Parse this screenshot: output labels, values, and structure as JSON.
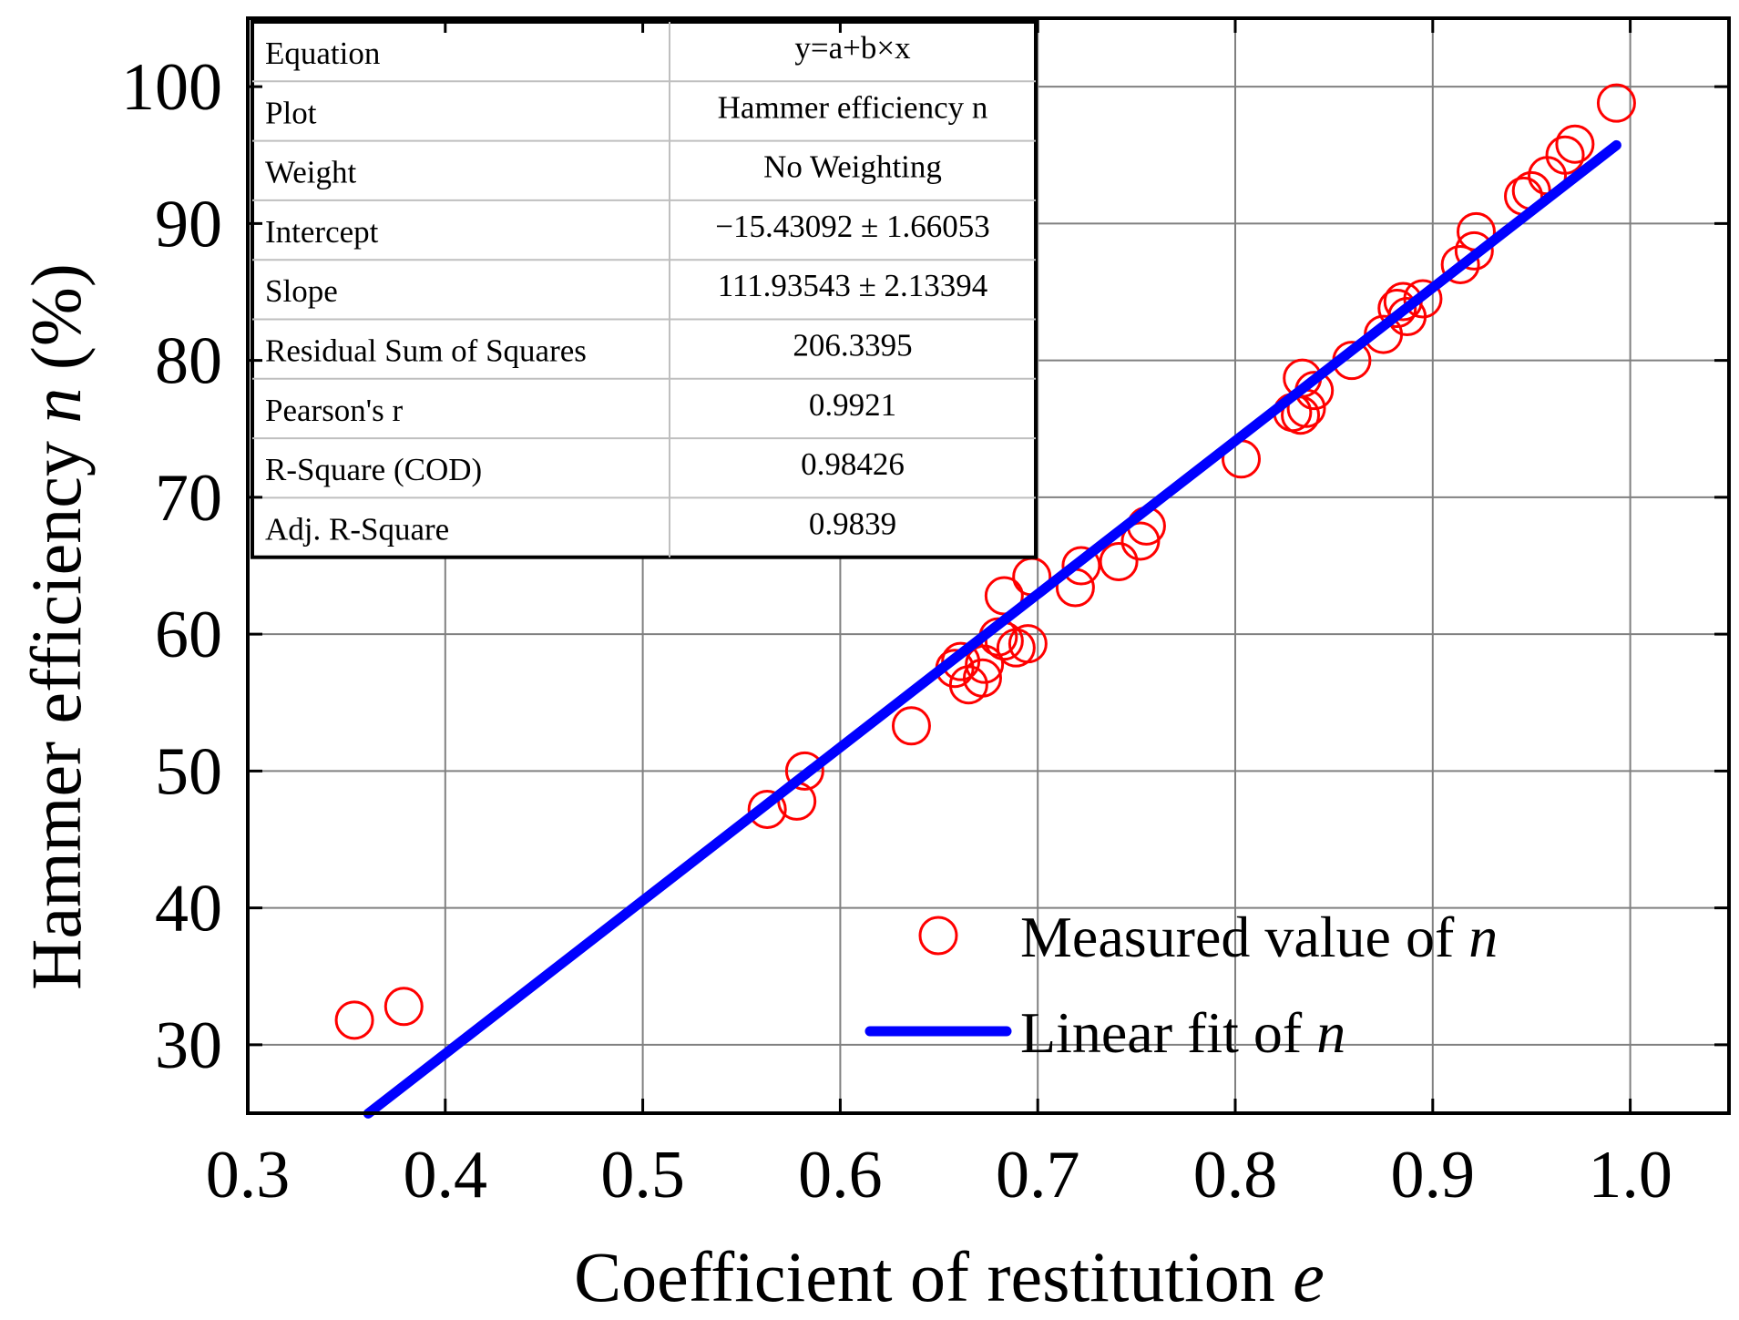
{
  "chart_data": {
    "type": "scatter",
    "xlabel": "Coefficient of restitution",
    "xlabel_var": "e",
    "ylabel": "Hammer efficiency",
    "ylabel_var": "n",
    "ylabel_unit": "(%)",
    "xlim": [
      0.3,
      1.05
    ],
    "ylim": [
      25,
      105
    ],
    "x_ticks": [
      0.3,
      0.4,
      0.5,
      0.6,
      0.7,
      0.8,
      0.9,
      1.0
    ],
    "x_tick_labels": [
      "0.3",
      "0.4",
      "0.5",
      "0.6",
      "0.7",
      "0.8",
      "0.9",
      "1.0"
    ],
    "y_ticks": [
      30,
      40,
      50,
      60,
      70,
      80,
      90,
      100
    ],
    "y_tick_labels": [
      "30",
      "40",
      "50",
      "60",
      "70",
      "80",
      "90",
      "100"
    ],
    "grid": true,
    "legend_position": "bottom-right",
    "series": [
      {
        "name": "Measured value of",
        "name_var": "n",
        "kind": "scatter",
        "marker": "open-circle",
        "color": "#ff0000",
        "points": [
          [
            0.354,
            31.8
          ],
          [
            0.379,
            32.8
          ],
          [
            0.563,
            47.2
          ],
          [
            0.578,
            47.8
          ],
          [
            0.582,
            50.0
          ],
          [
            0.636,
            53.3
          ],
          [
            0.658,
            57.5
          ],
          [
            0.661,
            58.0
          ],
          [
            0.665,
            56.3
          ],
          [
            0.672,
            56.8
          ],
          [
            0.673,
            57.8
          ],
          [
            0.68,
            59.8
          ],
          [
            0.683,
            59.5
          ],
          [
            0.683,
            62.8
          ],
          [
            0.689,
            59.0
          ],
          [
            0.695,
            59.3
          ],
          [
            0.697,
            64.2
          ],
          [
            0.719,
            63.4
          ],
          [
            0.722,
            65.0
          ],
          [
            0.741,
            65.3
          ],
          [
            0.752,
            66.8
          ],
          [
            0.755,
            67.9
          ],
          [
            0.803,
            72.8
          ],
          [
            0.829,
            76.2
          ],
          [
            0.833,
            76.0
          ],
          [
            0.834,
            78.7
          ],
          [
            0.836,
            76.5
          ],
          [
            0.84,
            77.8
          ],
          [
            0.859,
            80.0
          ],
          [
            0.875,
            81.9
          ],
          [
            0.882,
            83.8
          ],
          [
            0.885,
            84.3
          ],
          [
            0.887,
            83.2
          ],
          [
            0.895,
            84.5
          ],
          [
            0.914,
            87.0
          ],
          [
            0.921,
            88.0
          ],
          [
            0.922,
            89.4
          ],
          [
            0.946,
            92.0
          ],
          [
            0.95,
            92.4
          ],
          [
            0.958,
            93.5
          ],
          [
            0.967,
            95.0
          ],
          [
            0.972,
            95.8
          ],
          [
            0.993,
            98.8
          ]
        ]
      },
      {
        "name": "Linear fit of",
        "name_var": "n",
        "kind": "line",
        "color": "#0000ff",
        "intercept": -15.43092,
        "slope": 111.93543,
        "x_range": [
          0.361,
          0.993
        ]
      }
    ],
    "stats_table": {
      "rows": [
        [
          "Equation",
          "y=a+b×x"
        ],
        [
          "Plot",
          "Hammer efficiency n"
        ],
        [
          "Weight",
          "No Weighting"
        ],
        [
          "Intercept",
          "−15.43092 ± 1.66053"
        ],
        [
          "Slope",
          "111.93543 ± 2.13394"
        ],
        [
          "Residual Sum of Squares",
          "206.3395"
        ],
        [
          "Pearson's r",
          "0.9921"
        ],
        [
          "R-Square (COD)",
          "0.98426"
        ],
        [
          "Adj. R-Square",
          "0.9839"
        ]
      ]
    }
  }
}
